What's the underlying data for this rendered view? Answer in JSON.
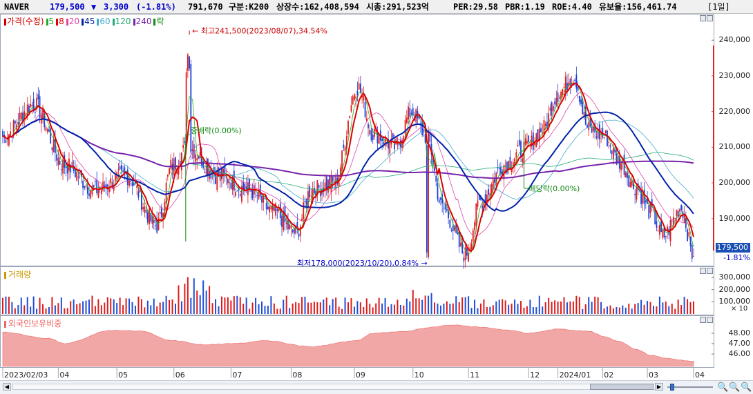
{
  "header": {
    "name": "NAVER",
    "price": "179,500",
    "change_arrow": "▼",
    "change": "3,300",
    "change_pct": "(-1.81%)",
    "volume": "791,670",
    "market": "구분:K200",
    "shares": "상장수:162,408,594",
    "mcap": "시총:291,523억",
    "per": "PER:29.58",
    "pbr": "PBR:1.19",
    "roe": "ROE:4.40",
    "float": "유보율:156,461.74",
    "period": "[1일]"
  },
  "legend_price": {
    "items": [
      {
        "label": "가격(수정)",
        "color": "#cc0000"
      },
      {
        "label": "5",
        "color": "#22aa22"
      },
      {
        "label": "8",
        "color": "#dd0000"
      },
      {
        "label": "20",
        "color": "#dd44aa"
      },
      {
        "label": "45",
        "color": "#0022aa"
      },
      {
        "label": "60",
        "color": "#44aacc"
      },
      {
        "label": "120",
        "color": "#22aa77"
      },
      {
        "label": "240",
        "color": "#7722aa"
      },
      {
        "label": "락",
        "color": "#118811"
      }
    ]
  },
  "legend_volume": {
    "label": "거래량",
    "color": "#cc9900"
  },
  "legend_foreign": {
    "label": "외국인보유비중",
    "color": "#ee6666"
  },
  "annotations": {
    "high": "최고241,500(2023/08/07),34.54%",
    "low": "최저178,000(2023/10/20),0.84%",
    "interim": "중배락(0.00%)",
    "dividend": "배당락(0.00%)"
  },
  "price_badge": {
    "price": "179,500",
    "pct": "-1.81%"
  },
  "volume_unit": "× 10",
  "chart_data": [
    {
      "type": "candlestick",
      "title": "",
      "ylim": [
        177000,
        247000
      ],
      "yticks": [
        "240,000",
        "230,000",
        "220,000",
        "210,000",
        "200,000",
        "190,000"
      ],
      "ytick_values": [
        240000,
        230000,
        220000,
        210000,
        200000,
        190000
      ],
      "xlabels": [
        "2023/02/03",
        "04",
        "05",
        "06",
        "07",
        "08",
        "09",
        "10",
        "11",
        "12",
        "2024/01",
        "02",
        "03",
        "04"
      ],
      "close_anchor_days": [
        0,
        20,
        40,
        60,
        80,
        100,
        110,
        120,
        140,
        160,
        175,
        190,
        200,
        215,
        230,
        240,
        255,
        265,
        275,
        285,
        300,
        310,
        325,
        340,
        350,
        360,
        370,
        380,
        390,
        400,
        410,
        420,
        428,
        440,
        448
      ],
      "close_anchor_values": [
        213000,
        222000,
        205000,
        198000,
        202000,
        188000,
        205000,
        210000,
        202000,
        198000,
        192000,
        186000,
        198000,
        200000,
        227000,
        214000,
        210000,
        220000,
        213000,
        193000,
        180000,
        195000,
        205000,
        210000,
        215000,
        225000,
        230000,
        215000,
        213000,
        206000,
        199000,
        192000,
        185000,
        193000,
        179500
      ],
      "last_close": 179500,
      "high": 241500,
      "low": 178000
    },
    {
      "type": "bar",
      "title": "",
      "ylabel": "",
      "ylim": [
        0,
        380000
      ],
      "yticks": [
        "300,000",
        "200,000",
        "100,000"
      ],
      "ytick_values": [
        300000,
        200000,
        100000
      ]
    },
    {
      "type": "area",
      "title": "",
      "ylim": [
        44.8,
        49.6
      ],
      "yticks": [
        "48.00",
        "47.00",
        "46.00"
      ],
      "ytick_values": [
        48,
        47,
        46
      ],
      "anchor_days": [
        0,
        30,
        40,
        70,
        90,
        110,
        130,
        150,
        170,
        200,
        230,
        240,
        260,
        280,
        290,
        310,
        330,
        340,
        360,
        380,
        390,
        400,
        410,
        420,
        430,
        440,
        448
      ],
      "anchor_values": [
        48.1,
        47.5,
        47.0,
        48.3,
        48.2,
        47.3,
        46.9,
        47.0,
        47.3,
        46.7,
        47.3,
        48.0,
        48.2,
        48.6,
        48.8,
        48.6,
        48.3,
        48.0,
        48.4,
        48.2,
        47.7,
        47.2,
        46.5,
        45.9,
        45.6,
        45.4,
        45.3
      ]
    }
  ]
}
